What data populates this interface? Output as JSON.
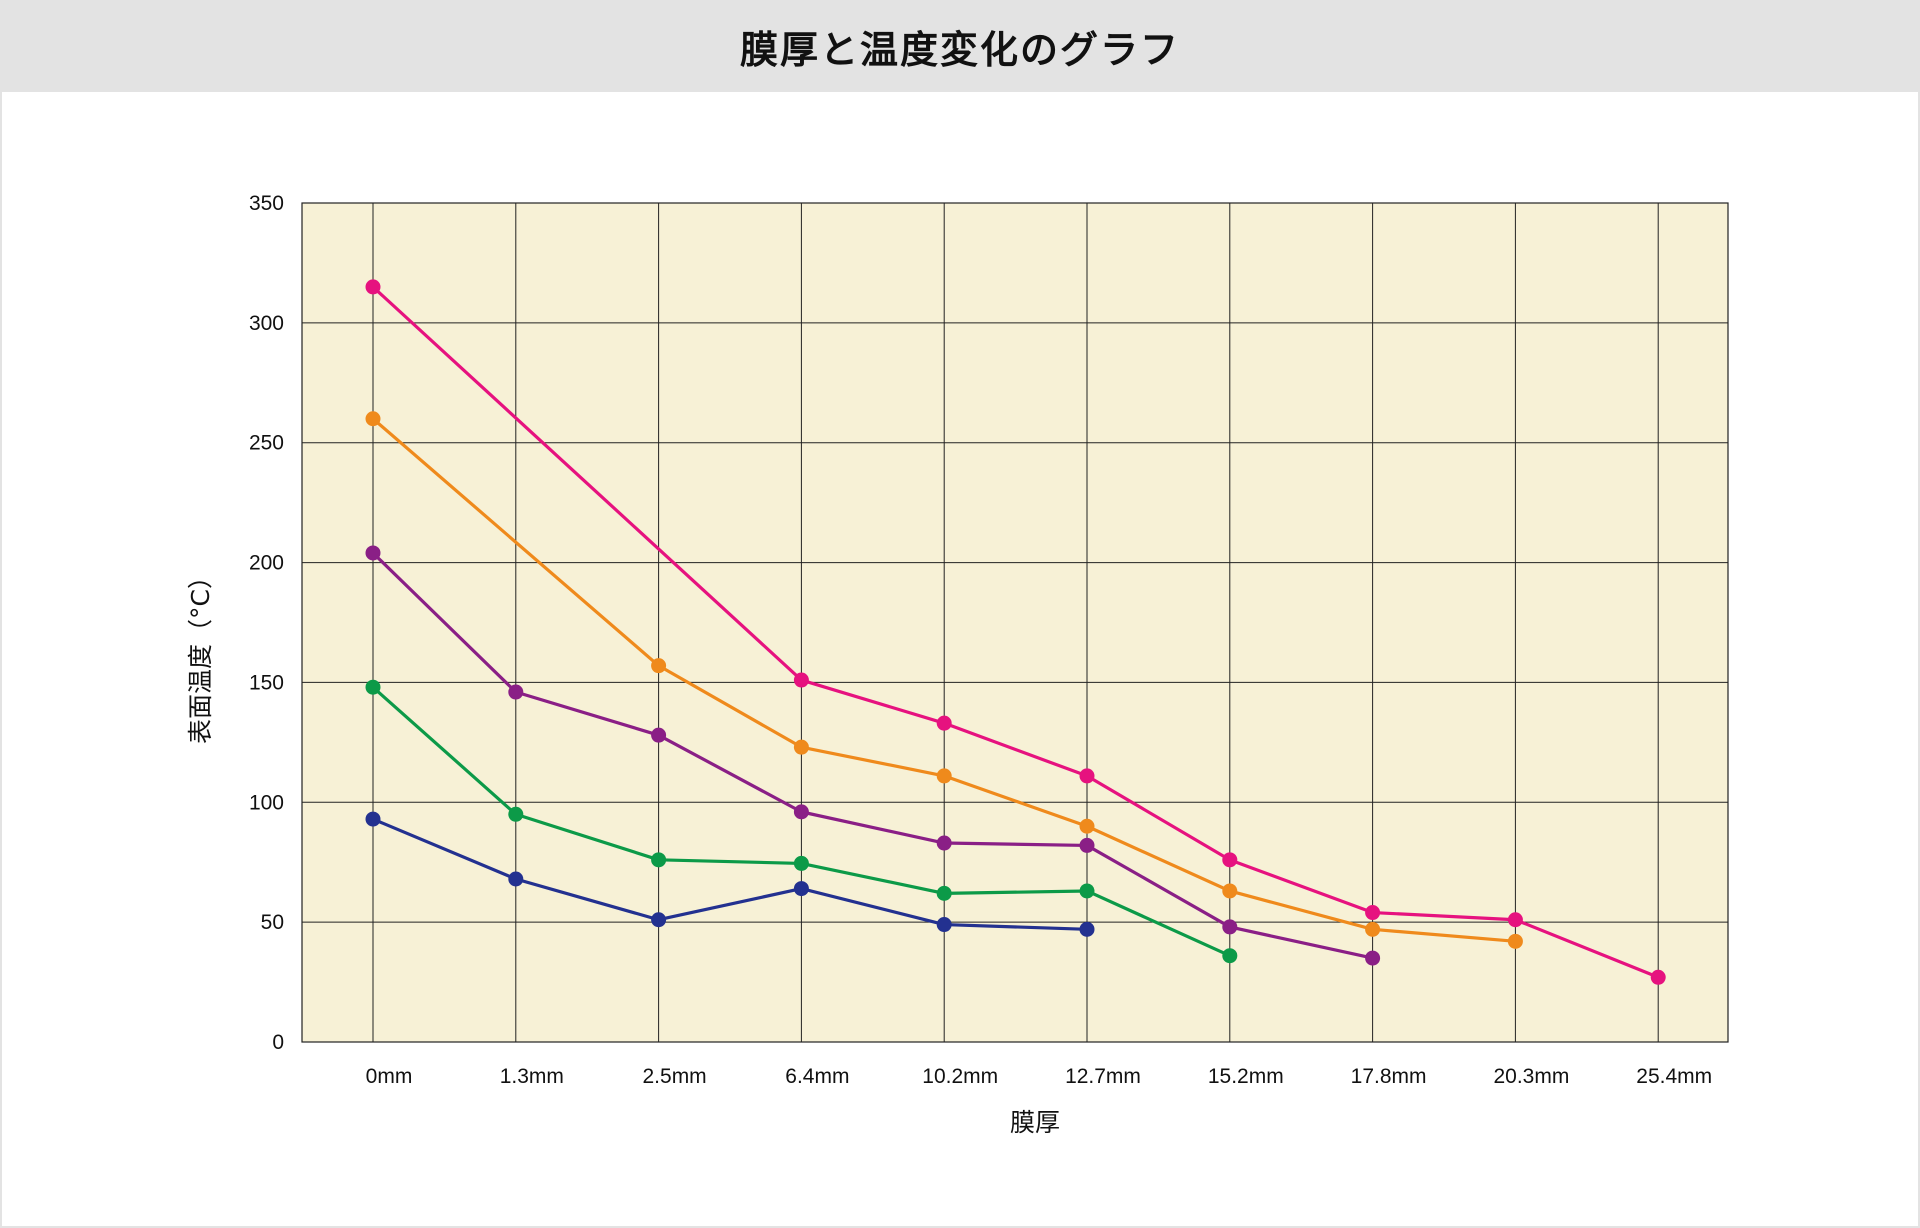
{
  "header": {
    "title": "膜厚と温度変化のグラフ"
  },
  "chart_data": {
    "type": "line",
    "title": "膜厚と温度変化のグラフ",
    "xlabel": "膜厚",
    "ylabel": "表面温度（°C）",
    "categories": [
      "0mm",
      "1.3mm",
      "2.5mm",
      "6.4mm",
      "10.2mm",
      "12.7mm",
      "15.2mm",
      "17.8mm",
      "20.3mm",
      "25.4mm"
    ],
    "ylim": [
      0,
      350
    ],
    "yticks": [
      "0",
      "50",
      "100",
      "150",
      "200",
      "250",
      "300",
      "350"
    ],
    "grid": true,
    "plot_background": "#f7f1d6",
    "series": [
      {
        "color": "#e6127f",
        "values": [
          315,
          null,
          null,
          151,
          133,
          111,
          76,
          54,
          51,
          27
        ],
        "gap_bridge": true
      },
      {
        "color": "#ef8a1c",
        "values": [
          260,
          null,
          157,
          123,
          111,
          90,
          63,
          47,
          42,
          null
        ],
        "gap_bridge": true
      },
      {
        "color": "#8a1f86",
        "values": [
          204,
          146,
          128,
          96,
          83,
          82,
          48,
          35,
          null,
          null
        ]
      },
      {
        "color": "#0c9a48",
        "values": [
          148,
          95,
          76,
          74.5,
          62,
          63,
          36,
          null,
          null,
          null
        ]
      },
      {
        "color": "#233190",
        "values": [
          93,
          68,
          51,
          64,
          49,
          47,
          null,
          null,
          null,
          null
        ]
      }
    ]
  }
}
